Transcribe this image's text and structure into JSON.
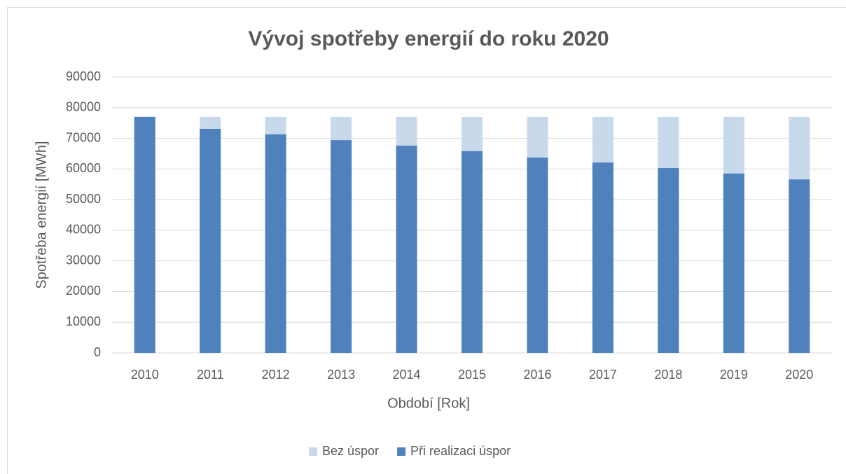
{
  "chart_data": {
    "type": "bar",
    "overlap": true,
    "title": "Vývoj spotřeby energií do roku 2020",
    "x_label": "Období [Rok]",
    "y_label": "Spotřeba energií [MWh]",
    "categories": [
      "2010",
      "2011",
      "2012",
      "2013",
      "2014",
      "2015",
      "2016",
      "2017",
      "2018",
      "2019",
      "2020"
    ],
    "series": [
      {
        "name": "Bez úspor",
        "color": "#c9d9ec",
        "values": [
          77000,
          77000,
          77000,
          77000,
          77000,
          77000,
          77000,
          77000,
          77000,
          77000,
          77000
        ]
      },
      {
        "name": "Při realizaci úspor",
        "color": "#4f81bd",
        "values": [
          77000,
          73100,
          71300,
          69400,
          67600,
          65800,
          63700,
          62100,
          60300,
          58500,
          56600
        ]
      }
    ],
    "ylim": [
      0,
      90000
    ],
    "yticks": [
      0,
      10000,
      20000,
      30000,
      40000,
      50000,
      60000,
      70000,
      80000,
      90000
    ],
    "grid": true,
    "legend": "bottom"
  }
}
